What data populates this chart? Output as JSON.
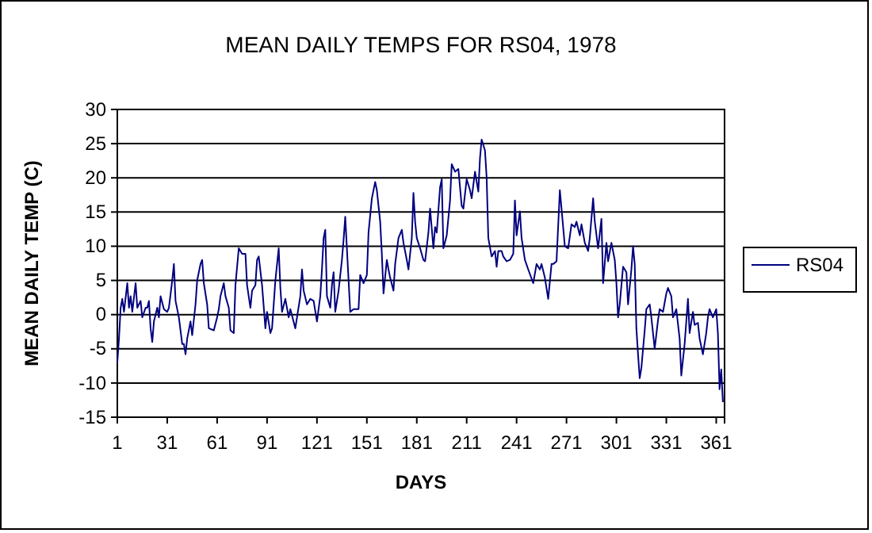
{
  "chart_data": {
    "type": "line",
    "title": "MEAN DAILY TEMPS FOR RS04, 1978",
    "xlabel": "DAYS",
    "ylabel": "MEAN DAILY TEMP (C)",
    "xlim": [
      1,
      366
    ],
    "xticks": [
      1,
      31,
      61,
      91,
      121,
      151,
      181,
      211,
      241,
      271,
      301,
      331,
      361
    ],
    "ylim": [
      -15,
      30
    ],
    "yticks": [
      -15,
      -10,
      -5,
      0,
      5,
      10,
      15,
      20,
      25,
      30
    ],
    "grid": "y",
    "legend": "right",
    "marker": "none",
    "line_style": "solid",
    "series": [
      {
        "name": "RS04",
        "color": "#000080",
        "x": [
          1,
          2,
          3,
          4,
          5,
          7,
          8,
          9,
          10,
          12,
          13,
          15,
          16,
          18,
          19,
          20,
          21,
          22,
          23,
          25,
          26,
          27,
          29,
          31,
          32,
          34,
          35,
          36,
          38,
          40,
          41,
          42,
          43,
          45,
          46,
          48,
          49,
          51,
          52,
          53,
          55,
          56,
          59,
          61,
          62,
          63,
          65,
          66,
          68,
          69,
          71,
          72,
          74,
          76,
          78,
          79,
          81,
          82,
          84,
          85,
          86,
          88,
          90,
          91,
          93,
          94,
          96,
          98,
          99,
          100,
          102,
          104,
          105,
          108,
          109,
          111,
          112,
          113,
          115,
          117,
          119,
          121,
          123,
          124,
          125,
          126,
          127,
          129,
          130,
          131,
          132,
          134,
          136,
          137,
          138,
          141,
          143,
          146,
          147,
          149,
          151,
          152,
          154,
          156,
          157,
          159,
          160,
          161,
          163,
          164,
          165,
          167,
          168,
          170,
          172,
          173,
          175,
          176,
          178,
          179,
          180,
          181,
          183,
          185,
          186,
          188,
          189,
          191,
          192,
          193,
          195,
          196,
          197,
          199,
          201,
          202,
          204,
          206,
          208,
          209,
          211,
          213,
          214,
          216,
          218,
          219,
          220,
          222,
          223,
          224,
          226,
          228,
          229,
          230,
          232,
          233,
          235,
          237,
          239,
          240,
          241,
          243,
          244,
          246,
          248,
          251,
          253,
          255,
          256,
          258,
          260,
          262,
          263,
          265,
          267,
          268,
          270,
          272,
          274,
          276,
          277,
          279,
          280,
          282,
          284,
          285,
          287,
          288,
          290,
          292,
          293,
          295,
          296,
          298,
          300,
          301,
          302,
          303,
          305,
          307,
          308,
          310,
          311,
          312,
          313,
          314,
          315,
          316,
          318,
          319,
          321,
          322,
          324,
          326,
          327,
          329,
          331,
          332,
          334,
          335,
          337,
          339,
          340,
          342,
          344,
          345,
          347,
          348,
          350,
          351,
          353,
          355,
          356,
          357,
          359,
          361,
          362,
          363,
          364,
          365
        ],
        "values": [
          -7,
          -3.5,
          1,
          2.3,
          0.4,
          4.6,
          1,
          2.7,
          0.4,
          4.6,
          1,
          2,
          -0.4,
          1,
          1,
          2,
          -2,
          -4,
          -1,
          1,
          -0.4,
          2.7,
          0.8,
          0.4,
          1,
          5,
          7.4,
          2,
          -0.4,
          -4.3,
          -4.3,
          -5.8,
          -3.5,
          -1,
          -3,
          1.5,
          5,
          7.4,
          8,
          4.6,
          1.5,
          -2,
          -2.3,
          -0.4,
          0.8,
          2.7,
          4.6,
          2.7,
          1,
          -2.3,
          -2.7,
          4.3,
          9.7,
          8.9,
          8.9,
          4.3,
          1,
          3.5,
          4.3,
          8,
          8.5,
          4.3,
          -2,
          0.4,
          -2.7,
          -2,
          5,
          9.7,
          3.9,
          0.4,
          2.3,
          -0.4,
          0.8,
          -2,
          -0.4,
          2.7,
          6.6,
          3.5,
          1.5,
          2.3,
          2,
          -1,
          2.7,
          6.6,
          11.2,
          12.4,
          2.7,
          1,
          4.3,
          6.2,
          0.4,
          3.5,
          8,
          10.9,
          14.3,
          0.4,
          0.8,
          0.8,
          5.8,
          4.6,
          5.8,
          12,
          17,
          19.4,
          18.2,
          13.6,
          8.9,
          3.1,
          8,
          6.6,
          5.4,
          3.5,
          7.4,
          11.2,
          12.4,
          10.5,
          8,
          6.6,
          11.2,
          17.8,
          13.6,
          11.2,
          9.7,
          8,
          7.8,
          12,
          15.5,
          9.7,
          12.8,
          12,
          18.6,
          19.8,
          9.7,
          11.6,
          16.7,
          22,
          20.9,
          21.3,
          15.9,
          15.5,
          19.8,
          18.2,
          17,
          20.9,
          18,
          22.9,
          25.6,
          24,
          20,
          11.2,
          8.5,
          9.3,
          7,
          9.3,
          9.3,
          8.5,
          7.8,
          8,
          8.9,
          16.7,
          11.6,
          15.1,
          11.2,
          8,
          6.6,
          4.6,
          7.4,
          6.6,
          7.4,
          5.4,
          2.3,
          7.4,
          7.4,
          7.8,
          18.2,
          15.5,
          10,
          9.7,
          13.2,
          12.8,
          13.6,
          11.6,
          13.2,
          10.5,
          9.3,
          11.2,
          17,
          13.6,
          9.7,
          14,
          4.6,
          10.5,
          7.8,
          10.5,
          8,
          4.6,
          -0.4,
          1.5,
          7,
          6.2,
          1.5,
          6.6,
          10,
          7.4,
          -2,
          -5.8,
          -9.3,
          -7.8,
          -2.3,
          0.8,
          1.5,
          -0.4,
          -5,
          -0.8,
          0.8,
          0.4,
          3.1,
          3.9,
          2.7,
          -0.4,
          0.8,
          -3.5,
          -8.9,
          -4.3,
          2.3,
          -2.7,
          0.4,
          -1.5,
          -1.2,
          -3.5,
          -5.8,
          -2.7,
          -0.4,
          0.8,
          -0.4,
          0.8,
          -2.7,
          -10.9,
          -8,
          -12.8
        ]
      }
    ]
  }
}
